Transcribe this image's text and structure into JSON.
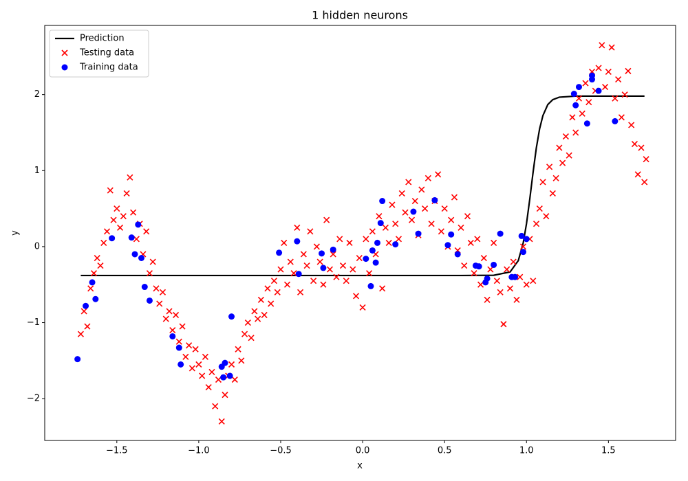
{
  "chart_data": {
    "type": "scatter",
    "title": "1 hidden neurons",
    "x_label": "x",
    "y_label": "y",
    "xlim": [
      -1.94,
      1.91
    ],
    "ylim": [
      -2.55,
      2.91
    ],
    "xticks": [
      {
        "value": -1.5,
        "label": "−1.5"
      },
      {
        "value": -1,
        "label": "−1.0"
      },
      {
        "value": -0.5,
        "label": "−0.5"
      },
      {
        "value": 0,
        "label": "0.0"
      },
      {
        "value": 0.5,
        "label": "0.5"
      },
      {
        "value": 1,
        "label": "1.0"
      },
      {
        "value": 1.5,
        "label": "1.5"
      }
    ],
    "yticks": [
      {
        "value": -2,
        "label": "−2"
      },
      {
        "value": -1,
        "label": "−1"
      },
      0,
      1,
      2
    ],
    "legend": "upper left",
    "series": [
      {
        "name": "Prediction",
        "kind": "line",
        "color": "#000000",
        "x": [
          -1.72,
          0.6,
          0.8,
          0.9,
          0.95,
          0.98,
          1.0,
          1.02,
          1.04,
          1.06,
          1.08,
          1.1,
          1.13,
          1.16,
          1.2,
          1.3,
          1.72
        ],
        "values": [
          -0.38,
          -0.38,
          -0.377,
          -0.333,
          -0.184,
          0.049,
          0.302,
          0.625,
          0.975,
          1.298,
          1.55,
          1.723,
          1.869,
          1.933,
          1.966,
          1.98,
          1.98
        ]
      },
      {
        "name": "Testing data",
        "kind": "cross",
        "color": "#ff0000",
        "x": [
          -1.72,
          -1.7,
          -1.68,
          -1.66,
          -1.64,
          -1.62,
          -1.6,
          -1.58,
          -1.56,
          -1.54,
          -1.52,
          -1.5,
          -1.48,
          -1.46,
          -1.44,
          -1.42,
          -1.4,
          -1.38,
          -1.36,
          -1.34,
          -1.32,
          -1.3,
          -1.28,
          -1.26,
          -1.24,
          -1.22,
          -1.2,
          -1.18,
          -1.16,
          -1.14,
          -1.12,
          -1.1,
          -1.08,
          -1.06,
          -1.04,
          -1.02,
          -1.0,
          -0.98,
          -0.96,
          -0.94,
          -0.92,
          -0.9,
          -0.88,
          -0.86,
          -0.84,
          -0.82,
          -0.8,
          -0.78,
          -0.76,
          -0.74,
          -0.72,
          -0.7,
          -0.68,
          -0.66,
          -0.64,
          -0.62,
          -0.6,
          -0.58,
          -0.56,
          -0.54,
          -0.52,
          -0.5,
          -0.48,
          -0.46,
          -0.44,
          -0.42,
          -0.4,
          -0.38,
          -0.36,
          -0.34,
          -0.32,
          -0.3,
          -0.28,
          -0.26,
          -0.24,
          -0.22,
          -0.2,
          -0.18,
          -0.16,
          -0.14,
          -0.12,
          -0.1,
          -0.08,
          -0.06,
          -0.04,
          -0.02,
          0.0,
          0.02,
          0.04,
          0.06,
          0.08,
          0.1,
          0.12,
          0.14,
          0.16,
          0.18,
          0.2,
          0.22,
          0.24,
          0.26,
          0.28,
          0.3,
          0.32,
          0.34,
          0.36,
          0.38,
          0.4,
          0.42,
          0.44,
          0.46,
          0.48,
          0.5,
          0.52,
          0.54,
          0.56,
          0.58,
          0.6,
          0.62,
          0.64,
          0.66,
          0.68,
          0.7,
          0.72,
          0.74,
          0.76,
          0.78,
          0.8,
          0.82,
          0.84,
          0.86,
          0.88,
          0.9,
          0.92,
          0.94,
          0.96,
          0.98,
          1.0,
          1.02,
          1.04,
          1.06,
          1.08,
          1.1,
          1.12,
          1.14,
          1.16,
          1.18,
          1.2,
          1.22,
          1.24,
          1.26,
          1.28,
          1.3,
          1.32,
          1.34,
          1.36,
          1.38,
          1.4,
          1.42,
          1.44,
          1.46,
          1.48,
          1.5,
          1.52,
          1.54,
          1.56,
          1.58,
          1.6,
          1.62,
          1.64,
          1.66,
          1.68,
          1.7,
          1.72,
          1.73
        ],
        "values": [
          -1.15,
          -0.85,
          -1.05,
          -0.55,
          -0.35,
          -0.15,
          -0.25,
          0.05,
          0.2,
          0.74,
          0.35,
          0.5,
          0.25,
          0.4,
          0.7,
          0.91,
          0.45,
          0.1,
          0.3,
          -0.1,
          0.2,
          -0.35,
          -0.2,
          -0.55,
          -0.75,
          -0.6,
          -0.95,
          -0.85,
          -1.1,
          -0.9,
          -1.25,
          -1.05,
          -1.45,
          -1.3,
          -1.6,
          -1.35,
          -1.55,
          -1.7,
          -1.45,
          -1.85,
          -1.65,
          -2.1,
          -1.75,
          -2.3,
          -1.95,
          -1.7,
          -1.55,
          -1.75,
          -1.35,
          -1.5,
          -1.15,
          -1.0,
          -1.2,
          -0.85,
          -0.95,
          -0.7,
          -0.9,
          -0.55,
          -0.75,
          -0.45,
          -0.6,
          -0.3,
          0.05,
          -0.5,
          -0.2,
          -0.35,
          0.25,
          -0.6,
          -0.1,
          -0.25,
          0.2,
          -0.45,
          0.0,
          -0.2,
          -0.5,
          0.35,
          -0.3,
          -0.1,
          -0.4,
          0.1,
          -0.25,
          -0.45,
          0.05,
          -0.3,
          -0.65,
          -0.15,
          -0.8,
          0.1,
          -0.35,
          0.2,
          -0.1,
          0.4,
          -0.55,
          0.25,
          0.05,
          0.55,
          0.3,
          0.1,
          0.7,
          0.45,
          0.85,
          0.35,
          0.6,
          0.15,
          0.75,
          0.5,
          0.9,
          0.3,
          0.6,
          0.95,
          0.2,
          0.5,
          0.0,
          0.35,
          0.65,
          -0.05,
          0.25,
          -0.25,
          0.4,
          0.05,
          -0.35,
          0.1,
          -0.5,
          -0.15,
          -0.7,
          -0.3,
          0.05,
          -0.45,
          -0.6,
          -1.02,
          -0.3,
          -0.55,
          -0.2,
          -0.7,
          -0.4,
          0.0,
          -0.5,
          0.1,
          -0.45,
          0.3,
          0.5,
          0.85,
          0.4,
          1.05,
          0.7,
          0.9,
          1.3,
          1.1,
          1.45,
          1.2,
          1.7,
          1.5,
          1.95,
          1.75,
          2.15,
          1.9,
          2.3,
          2.05,
          2.35,
          2.65,
          2.1,
          2.3,
          2.62,
          1.95,
          2.2,
          1.7,
          2.0,
          2.31,
          1.6,
          1.35,
          0.95,
          1.3,
          0.85,
          1.15
        ]
      },
      {
        "name": "Training data",
        "kind": "dot",
        "color": "#0000ff",
        "x": [
          -1.74,
          -1.69,
          -1.65,
          -1.63,
          -1.53,
          -1.41,
          -1.39,
          -1.37,
          -1.35,
          -1.33,
          -1.3,
          -1.16,
          -1.12,
          -1.11,
          -0.86,
          -0.85,
          -0.84,
          -0.81,
          -0.8,
          -0.51,
          -0.4,
          -0.39,
          -0.25,
          -0.24,
          -0.18,
          0.02,
          0.05,
          0.06,
          0.08,
          0.09,
          0.11,
          0.12,
          0.2,
          0.31,
          0.34,
          0.44,
          0.52,
          0.54,
          0.58,
          0.69,
          0.71,
          0.75,
          0.76,
          0.8,
          0.84,
          0.91,
          0.93,
          0.97,
          0.98,
          1.0,
          1.29,
          1.3,
          1.32,
          1.37,
          1.4,
          1.4,
          1.44,
          1.54
        ],
        "values": [
          -1.48,
          -0.78,
          -0.47,
          -0.69,
          0.11,
          0.12,
          -0.1,
          0.29,
          -0.15,
          -0.53,
          -0.71,
          -1.18,
          -1.33,
          -1.55,
          -1.58,
          -1.72,
          -1.53,
          -1.7,
          -0.92,
          -0.08,
          0.07,
          -0.36,
          -0.09,
          -0.28,
          -0.04,
          -0.16,
          -0.52,
          -0.05,
          -0.21,
          0.05,
          0.31,
          0.6,
          0.03,
          0.46,
          0.17,
          0.61,
          0.02,
          0.16,
          -0.1,
          -0.25,
          -0.26,
          -0.47,
          -0.42,
          -0.24,
          0.17,
          -0.4,
          -0.4,
          0.14,
          -0.07,
          0.1,
          2.01,
          1.86,
          2.1,
          1.62,
          2.2,
          2.25,
          2.05,
          1.65
        ]
      }
    ]
  }
}
